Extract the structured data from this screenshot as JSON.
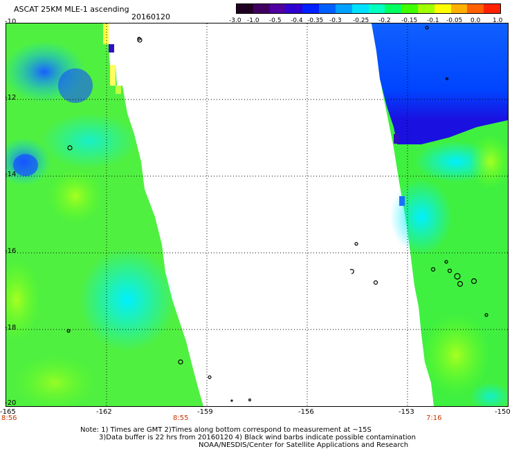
{
  "header": {
    "title": "ASCAT 25KM MLE-1 ascending",
    "date": "20160120"
  },
  "colorbar": {
    "tick_labels": [
      "-3.0",
      "-1.0",
      "-0.5",
      "-0.4",
      "-0.35",
      "-0.3",
      "-0.25",
      "-0.2",
      "-0.15",
      "-0.1",
      "-0.05",
      "0.0",
      "1.0"
    ],
    "colors": [
      "#200020",
      "#400060",
      "#5000a0",
      "#3000d0",
      "#0020ff",
      "#0060ff",
      "#00a0ff",
      "#00e0ff",
      "#00ffc0",
      "#00ff60",
      "#40ff00",
      "#a0ff00",
      "#ffff00",
      "#ffb000",
      "#ff6000",
      "#ff2000"
    ]
  },
  "map": {
    "lat_labels": [
      "-10",
      "-12",
      "-14",
      "-16",
      "-18",
      "-20"
    ],
    "lon_labels": [
      "-165",
      "-162",
      "-159",
      "-156",
      "-153",
      "-150"
    ],
    "times": [
      "8:56",
      "8:55",
      "7:16"
    ]
  },
  "notes": {
    "line1": "Note: 1) Times are GMT 2)Times along bottom correspond to measurement at ~15S",
    "line2": "3)Data buffer is 22 hrs from 20160120 4) Black wind barbs indicate possible contamination",
    "line3": "NOAA/NESDIS/Center for Satellite Applications and Research"
  }
}
